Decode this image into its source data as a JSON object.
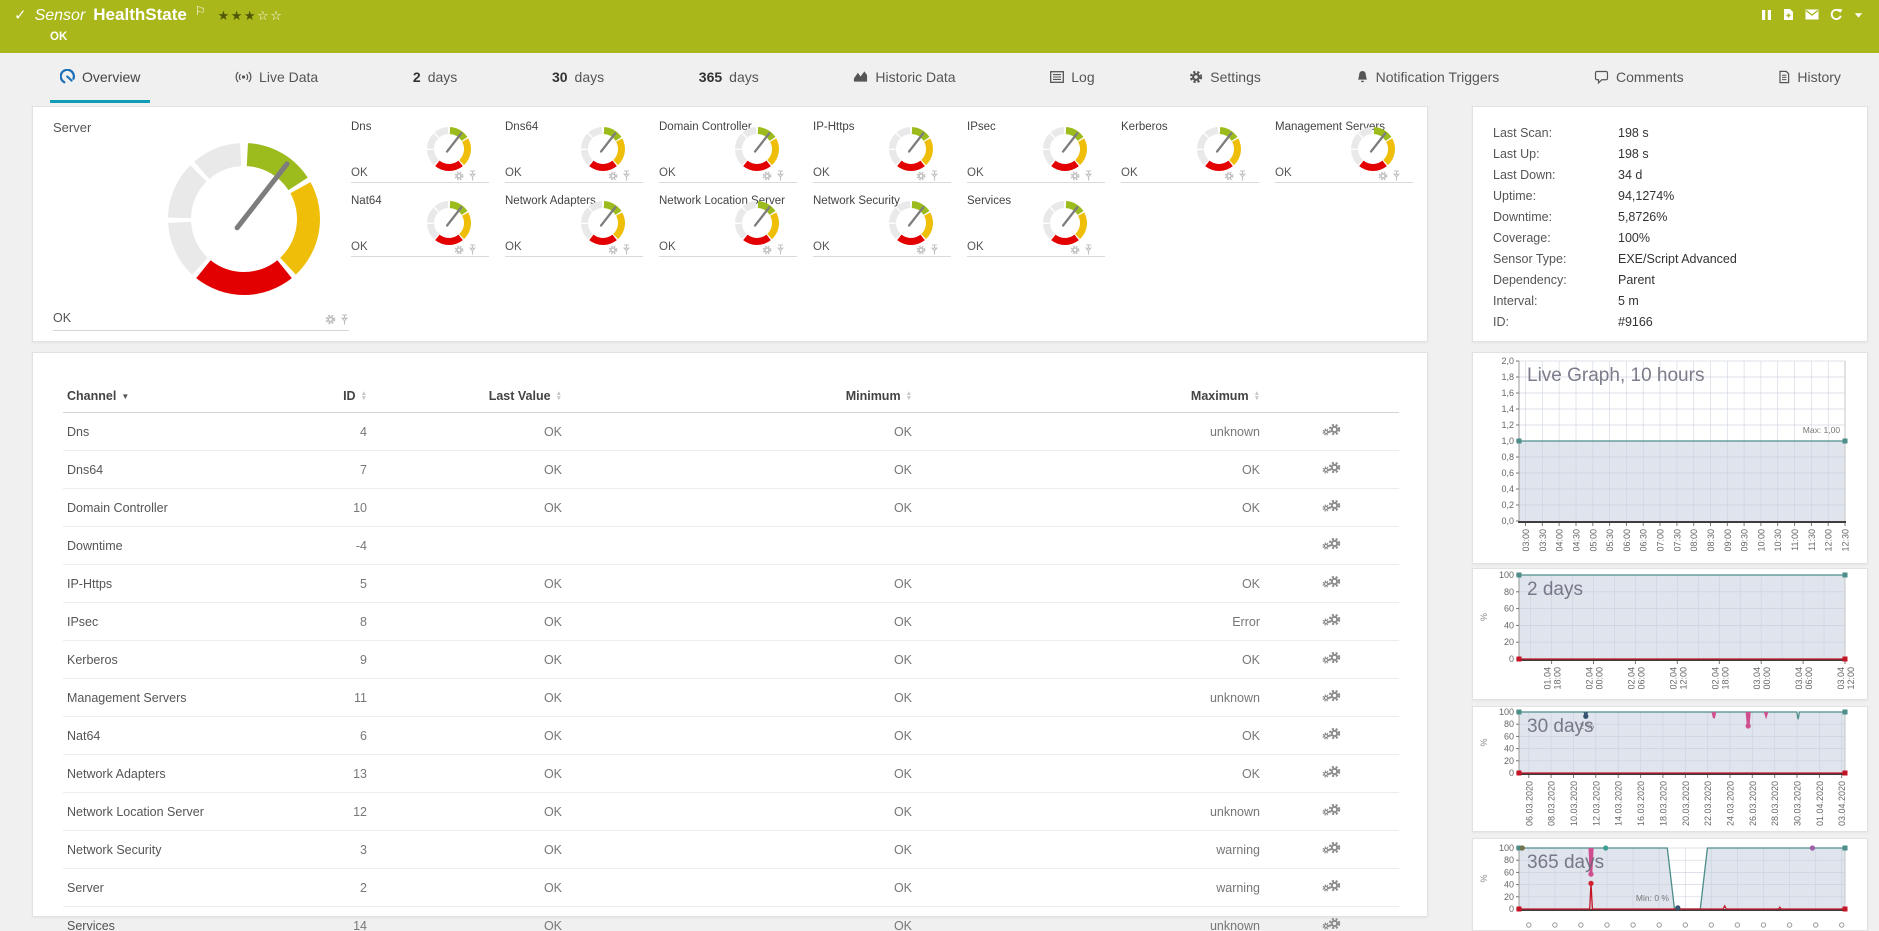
{
  "header": {
    "check_icon": "✓",
    "kind": "Sensor",
    "name": "HealthState",
    "status": "OK",
    "stars_filled": "★★★",
    "stars_empty": "☆☆",
    "toolbar": [
      "pause-icon",
      "add-report-icon",
      "email-icon",
      "refresh-icon",
      "menu-caret-icon"
    ]
  },
  "tabs": [
    {
      "label": "Overview",
      "icon": "gauge-icon",
      "active": true
    },
    {
      "label": "Live Data",
      "icon": "live-data-icon"
    },
    {
      "number": "2",
      "label": "days"
    },
    {
      "number": "30",
      "label": "days"
    },
    {
      "number": "365",
      "label": "days"
    },
    {
      "label": "Historic Data",
      "icon": "historic-data-icon"
    },
    {
      "label": "Log",
      "icon": "log-icon"
    },
    {
      "label": "Settings",
      "icon": "gear-icon"
    },
    {
      "label": "Notification Triggers",
      "icon": "bell-icon"
    },
    {
      "label": "Comments",
      "icon": "comment-icon"
    },
    {
      "label": "History",
      "icon": "history-icon"
    }
  ],
  "gauges": {
    "main": {
      "name": "Server",
      "status": "OK"
    },
    "small": [
      {
        "name": "Dns",
        "status": "OK"
      },
      {
        "name": "Dns64",
        "status": "OK"
      },
      {
        "name": "Domain Controller",
        "status": "OK"
      },
      {
        "name": "IP-Https",
        "status": "OK"
      },
      {
        "name": "IPsec",
        "status": "OK"
      },
      {
        "name": "Kerberos",
        "status": "OK"
      },
      {
        "name": "Management Servers",
        "status": "OK"
      },
      {
        "name": "Nat64",
        "status": "OK"
      },
      {
        "name": "Network Adapters",
        "status": "OK"
      },
      {
        "name": "Network Location Server",
        "status": "OK"
      },
      {
        "name": "Network Security",
        "status": "OK"
      },
      {
        "name": "Services",
        "status": "OK"
      }
    ]
  },
  "info": {
    "rows": [
      {
        "label": "Last Scan:",
        "value": "198 s"
      },
      {
        "label": "Last Up:",
        "value": "198 s"
      },
      {
        "label": "Last Down:",
        "value": "34 d"
      },
      {
        "label": "Uptime:",
        "value": "94,1274%"
      },
      {
        "label": "Downtime:",
        "value": "5,8726%"
      },
      {
        "label": "Coverage:",
        "value": "100%"
      },
      {
        "label": "Sensor Type:",
        "value": "EXE/Script Advanced"
      },
      {
        "label": "Dependency:",
        "value": "Parent"
      },
      {
        "label": "Interval:",
        "value": "5 m"
      },
      {
        "label": "ID:",
        "value": "#9166"
      }
    ]
  },
  "table": {
    "headers": [
      {
        "label": "Channel",
        "sort": "desc"
      },
      {
        "label": "ID",
        "sort": "both"
      },
      {
        "label": "Last Value",
        "sort": "both"
      },
      {
        "label": "Minimum",
        "sort": "both"
      },
      {
        "label": "Maximum",
        "sort": "both"
      }
    ],
    "rows": [
      {
        "channel": "Dns",
        "id": "4",
        "last": "OK",
        "min": "OK",
        "max": "unknown"
      },
      {
        "channel": "Dns64",
        "id": "7",
        "last": "OK",
        "min": "OK",
        "max": "OK"
      },
      {
        "channel": "Domain Controller",
        "id": "10",
        "last": "OK",
        "min": "OK",
        "max": "OK"
      },
      {
        "channel": "Downtime",
        "id": "-4",
        "last": "",
        "min": "",
        "max": ""
      },
      {
        "channel": "IP-Https",
        "id": "5",
        "last": "OK",
        "min": "OK",
        "max": "OK"
      },
      {
        "channel": "IPsec",
        "id": "8",
        "last": "OK",
        "min": "OK",
        "max": "Error"
      },
      {
        "channel": "Kerberos",
        "id": "9",
        "last": "OK",
        "min": "OK",
        "max": "OK"
      },
      {
        "channel": "Management Servers",
        "id": "11",
        "last": "OK",
        "min": "OK",
        "max": "unknown"
      },
      {
        "channel": "Nat64",
        "id": "6",
        "last": "OK",
        "min": "OK",
        "max": "OK"
      },
      {
        "channel": "Network Adapters",
        "id": "13",
        "last": "OK",
        "min": "OK",
        "max": "OK"
      },
      {
        "channel": "Network Location Server",
        "id": "12",
        "last": "OK",
        "min": "OK",
        "max": "unknown"
      },
      {
        "channel": "Network Security",
        "id": "3",
        "last": "OK",
        "min": "OK",
        "max": "warning"
      },
      {
        "channel": "Server",
        "id": "2",
        "last": "OK",
        "min": "OK",
        "max": "warning"
      },
      {
        "channel": "Services",
        "id": "14",
        "last": "OK",
        "min": "OK",
        "max": "unknown"
      }
    ]
  },
  "chart_data": [
    {
      "type": "line",
      "title": "Live Graph, 10 hours",
      "ylim": [
        0,
        2
      ],
      "yticks": [
        "0,0",
        "0,2",
        "0,4",
        "0,6",
        "0,8",
        "1,0",
        "1,2",
        "1,4",
        "1,6",
        "1,8",
        "2,0"
      ],
      "x": [
        "03:00",
        "03:30",
        "04:00",
        "04:30",
        "05:00",
        "05:30",
        "06:00",
        "06:30",
        "07:00",
        "07:30",
        "08:00",
        "08:30",
        "09:00",
        "09:30",
        "10:00",
        "10:30",
        "11:00",
        "11:30",
        "12:00",
        "12:30"
      ],
      "series": [
        {
          "name": "HealthState",
          "color": "#4d8e8a",
          "fill": true,
          "marker": "square",
          "points": [
            [
              0,
              1
            ],
            [
              1,
              1
            ]
          ]
        }
      ],
      "annotations": [
        {
          "text": "Max: 1,00",
          "x": 0.985,
          "y": 1.1,
          "anchor": "end"
        }
      ]
    },
    {
      "type": "line",
      "title": "2 days",
      "ylim": [
        0,
        100
      ],
      "ylabel": "%",
      "yticks": [
        "0",
        "20",
        "40",
        "60",
        "80",
        "100"
      ],
      "x2": [
        [
          "01.04",
          "18:00"
        ],
        [
          "02.04",
          "00:00"
        ],
        [
          "02.04",
          "06:00"
        ],
        [
          "02.04",
          "12:00"
        ],
        [
          "02.04",
          "18:00"
        ],
        [
          "03.04",
          "00:00"
        ],
        [
          "03.04",
          "06:00"
        ],
        [
          "03.04",
          "12:00"
        ]
      ],
      "series": [
        {
          "name": "uptime",
          "color": "#4d8e8a",
          "fill": true,
          "marker": "square",
          "points": [
            [
              0,
              100
            ],
            [
              1,
              100
            ]
          ]
        },
        {
          "name": "downtime",
          "color": "#c41425",
          "marker": "square",
          "points": [
            [
              0,
              0
            ],
            [
              1,
              0
            ]
          ]
        }
      ]
    },
    {
      "type": "line",
      "title": "30 days",
      "ylim": [
        0,
        100
      ],
      "ylabel": "%",
      "yticks": [
        "0",
        "20",
        "40",
        "60",
        "80",
        "100"
      ],
      "x": [
        "06.03.2020",
        "08.03.2020",
        "10.03.2020",
        "12.03.2020",
        "14.03.2020",
        "16.03.2020",
        "18.03.2020",
        "20.03.2020",
        "22.03.2020",
        "24.03.2020",
        "26.03.2020",
        "28.03.2020",
        "30.03.2020",
        "01.04.2020",
        "03.04.2020"
      ],
      "series": [
        {
          "name": "uptime",
          "color": "#4d8e8a",
          "fill": true,
          "marker": "square",
          "points": [
            [
              0,
              100
            ],
            [
              0.852,
              100
            ],
            [
              0.856,
              88
            ],
            [
              0.86,
              100
            ],
            [
              1,
              100
            ]
          ]
        },
        {
          "color": "#33536e",
          "width": 1.8,
          "points": [
            [
              0.201,
              100
            ],
            [
              0.205,
              90
            ],
            [
              0.209,
              100
            ]
          ]
        },
        {
          "color": "#cf4f8e",
          "width": 2,
          "points": [
            [
              0.594,
              100
            ],
            [
              0.598,
              90
            ],
            [
              0.602,
              100
            ]
          ]
        },
        {
          "color": "#cf4f8e",
          "width": 2.5,
          "points": [
            [
              0.699,
              100
            ],
            [
              0.703,
              75
            ],
            [
              0.707,
              100
            ]
          ]
        },
        {
          "color": "#cf4f8e",
          "width": 1.8,
          "points": [
            [
              0.754,
              100
            ],
            [
              0.758,
              93
            ],
            [
              0.762,
              100
            ]
          ]
        },
        {
          "name": "downtime",
          "color": "#c41425",
          "marker": "square",
          "points": [
            [
              0,
              0
            ],
            [
              1,
              0
            ]
          ]
        }
      ],
      "markers": [
        {
          "x": 0.205,
          "y": 93,
          "color": "#33536e"
        },
        {
          "x": 0.703,
          "y": 77,
          "color": "#cf4f8e"
        }
      ],
      "annotations": [
        {
          "text": "2 %",
          "x": 0.185,
          "y": 72
        }
      ]
    },
    {
      "type": "line",
      "title": "365 days",
      "ylim": [
        0,
        100
      ],
      "ylabel": "%",
      "yticks": [
        "0",
        "20",
        "40",
        "60",
        "80",
        "100"
      ],
      "x": [],
      "series": [
        {
          "name": "uptime",
          "color": "#4d8e8a",
          "fill": true,
          "marker": "square",
          "points": [
            [
              0,
              100
            ],
            [
              0.455,
              100
            ],
            [
              0.477,
              0
            ],
            [
              0.556,
              0
            ],
            [
              0.578,
              100
            ],
            [
              1,
              100
            ]
          ]
        },
        {
          "color": "#cf4f8e",
          "width": 2.5,
          "points": [
            [
              0.217,
              100
            ],
            [
              0.221,
              55
            ],
            [
              0.225,
              100
            ]
          ]
        },
        {
          "name": "downtime",
          "color": "#c41425",
          "marker": "square",
          "points": [
            [
              0,
              0
            ],
            [
              0.217,
              0
            ],
            [
              0.221,
              42
            ],
            [
              0.225,
              0
            ],
            [
              0.626,
              0
            ],
            [
              0.631,
              5
            ],
            [
              0.636,
              0
            ],
            [
              0.796,
              0
            ],
            [
              0.8,
              3
            ],
            [
              0.804,
              0
            ],
            [
              1,
              0
            ]
          ]
        }
      ],
      "markers": [
        {
          "x": 0.01,
          "y": 100,
          "color": "#74744a"
        },
        {
          "x": 0.221,
          "y": 57,
          "color": "#cf4f8e"
        },
        {
          "x": 0.221,
          "y": 42,
          "color": "#d02030"
        },
        {
          "x": 0.266,
          "y": 100,
          "color": "#3f9e94"
        },
        {
          "x": 0.487,
          "y": 2,
          "color": "#33536e"
        },
        {
          "x": 0.9,
          "y": 100,
          "color": "#a05fa5"
        }
      ],
      "annotations": [
        {
          "text": "Min: 0 %",
          "x": 0.46,
          "y": 13,
          "anchor": "end"
        }
      ]
    }
  ],
  "colors": {
    "header_bg": "#a9b71b",
    "accent": "#0f9cb4",
    "ok_green": "#9cbb1c",
    "warn_yellow": "#eebe09",
    "error_red": "#e30000",
    "gauge_gray": "#e9e9e9",
    "graph_line": "#4d8e8a",
    "graph_fill": "#dfe4ed",
    "graph_red": "#c41425"
  }
}
